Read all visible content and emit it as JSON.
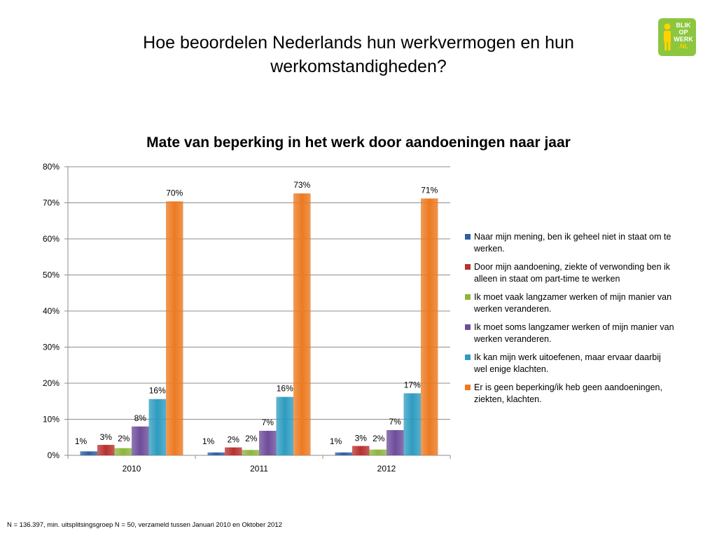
{
  "slide": {
    "title": "Hoe beoordelen Nederlands hun werkvermogen en hun werkomstandigheden?",
    "footnote": "N = 136.397, min. uitsplitsingsgroep N = 50, verzameld tussen Januari 2010 en Oktober 2012"
  },
  "logo": {
    "line1": "BLIK",
    "line2": "OP",
    "line3": "WERK",
    "line4": ".NL"
  },
  "chart_data": {
    "type": "bar",
    "title": "Mate van beperking in het werk door aandoeningen naar jaar",
    "categories": [
      "2010",
      "2011",
      "2012"
    ],
    "ylim": [
      0,
      80
    ],
    "y_ticks": [
      "0%",
      "10%",
      "20%",
      "30%",
      "40%",
      "50%",
      "60%",
      "70%",
      "80%"
    ],
    "grid": true,
    "legend_position": "right",
    "series": [
      {
        "name": "Naar mijn mening, ben ik geheel niet in staat om te werken.",
        "color": "#2e5fa3",
        "values": [
          1.1,
          0.8,
          0.8
        ],
        "labels": [
          "1%",
          "1%",
          "1%"
        ]
      },
      {
        "name": "Door mijn aandoening, ziekte of verwonding ben ik alleen in staat om part-time te werken",
        "color": "#b8312f",
        "values": [
          2.9,
          2.2,
          2.6
        ],
        "labels": [
          "3%",
          "2%",
          "3%"
        ]
      },
      {
        "name": "Ik moet vaak langzamer werken of mijn manier van werken veranderen.",
        "color": "#8db63e",
        "values": [
          2.0,
          1.5,
          1.6
        ],
        "labels": [
          "2%",
          "2%",
          "2%"
        ]
      },
      {
        "name": "Ik moet soms langzamer werken of mijn manier van werken veranderen.",
        "color": "#6e4c9a",
        "values": [
          8.0,
          6.8,
          7.0
        ],
        "labels": [
          "8%",
          "7%",
          "7%"
        ]
      },
      {
        "name": "Ik kan mijn werk uitoefenen, maar ervaar daarbij wel enige klachten.",
        "color": "#2e9cc0",
        "values": [
          15.6,
          16.2,
          17.2
        ],
        "labels": [
          "16%",
          "16%",
          "17%"
        ]
      },
      {
        "name": "Er is geen beperking/ik heb geen aandoeningen, ziekten, klachten.",
        "color": "#ec7a22",
        "values": [
          70.4,
          72.6,
          71.2
        ],
        "labels": [
          "70%",
          "73%",
          "71%"
        ]
      }
    ]
  }
}
